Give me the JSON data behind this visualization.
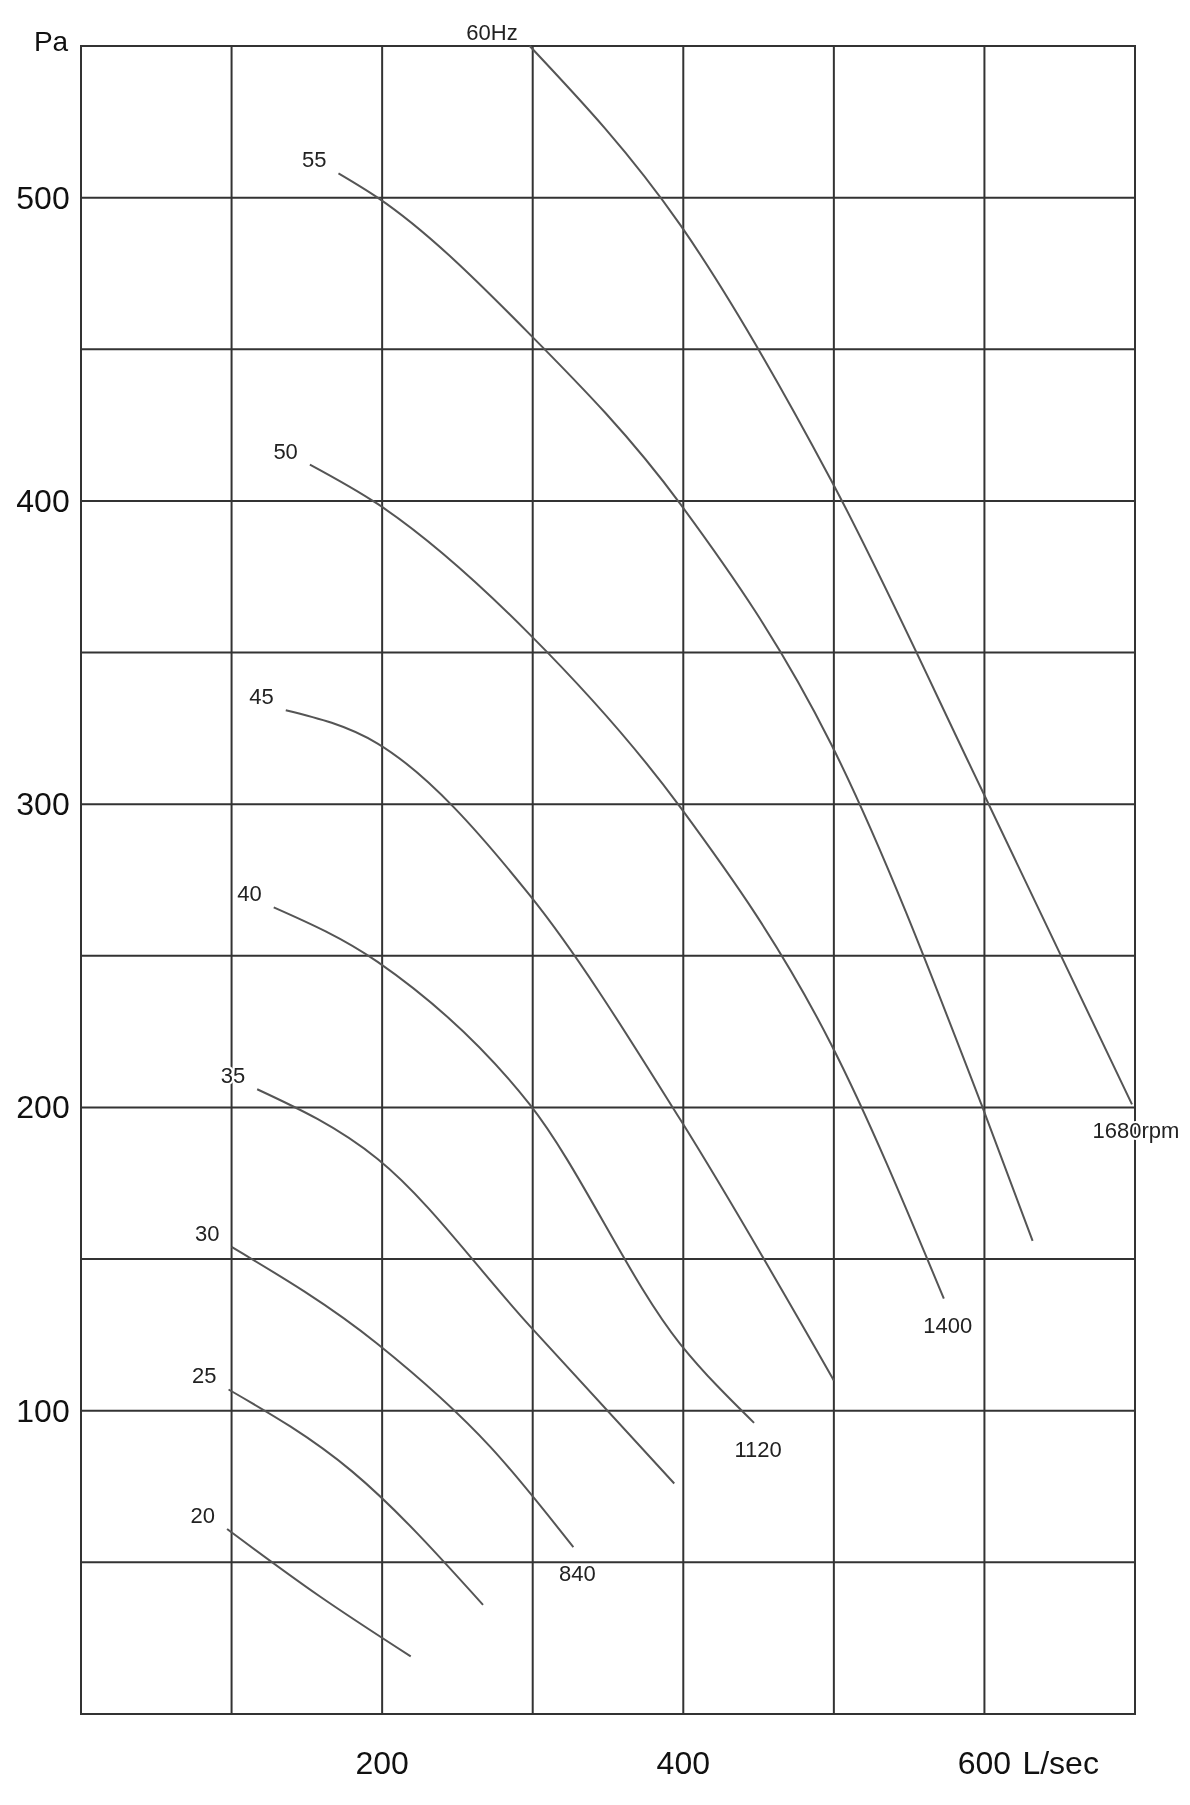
{
  "chart_data": {
    "type": "line",
    "xlabel": "L/sec",
    "ylabel": "Pa",
    "xlim": [
      0,
      700
    ],
    "ylim": [
      0,
      550
    ],
    "xticks": [
      {
        "value": 100,
        "label": null
      },
      200,
      {
        "value": 300,
        "label": null
      },
      400,
      {
        "value": 500,
        "label": null
      },
      600,
      {
        "value": 700,
        "label": null
      }
    ],
    "yticks": [
      {
        "value": 50,
        "label": null
      },
      100,
      {
        "value": 150,
        "label": null
      },
      200,
      {
        "value": 250,
        "label": null
      },
      300,
      {
        "value": 350,
        "label": null
      },
      400,
      {
        "value": 450,
        "label": null
      },
      500,
      {
        "value": 550,
        "label": null
      }
    ],
    "grid": true,
    "marker": "none",
    "line_style": "solid",
    "series": [
      {
        "name": "20",
        "color": "#555555",
        "x": [
          97,
          158,
          219
        ],
        "values": [
          61,
          39,
          19
        ]
      },
      {
        "name": "25",
        "color": "#555555",
        "x": [
          98,
          180,
          267
        ],
        "values": [
          107,
          80,
          36
        ]
      },
      {
        "name": "30",
        "color": "#555555",
        "x": [
          100,
          197,
          272,
          327
        ],
        "values": [
          154,
          122,
          88,
          55
        ]
      },
      {
        "name": "35",
        "color": "#555555",
        "x": [
          117,
          197,
          298,
          394
        ],
        "values": [
          206,
          183,
          128,
          76
        ]
      },
      {
        "name": "40",
        "color": "#555555",
        "x": [
          128,
          197,
          298,
          398,
          447
        ],
        "values": [
          266,
          248,
          201,
          122,
          96
        ]
      },
      {
        "name": "45",
        "color": "#555555",
        "x": [
          136,
          197,
          298,
          398,
          500
        ],
        "values": [
          331,
          320,
          270,
          196,
          110
        ]
      },
      {
        "name": "50",
        "color": "#555555",
        "x": [
          152,
          197,
          298,
          398,
          498,
          573
        ],
        "values": [
          412,
          399,
          356,
          299,
          221,
          137
        ]
      },
      {
        "name": "55",
        "color": "#555555",
        "x": [
          171,
          197,
          298,
          398,
          498,
          598,
          632
        ],
        "values": [
          508,
          500,
          455,
          399,
          320,
          201,
          156
        ]
      },
      {
        "name": "60Hz",
        "color": "#555555",
        "x": [
          298,
          398,
          498,
          598,
          698
        ],
        "values": [
          550,
          491,
          407,
          305,
          201
        ]
      }
    ],
    "annotations": [
      {
        "text": "840",
        "x": 327,
        "y": 55
      },
      {
        "text": "1120",
        "x": 447,
        "y": 96
      },
      {
        "text": "1400",
        "x": 573,
        "y": 137
      },
      {
        "text": "1680rpm",
        "x": 698,
        "y": 201
      }
    ]
  }
}
